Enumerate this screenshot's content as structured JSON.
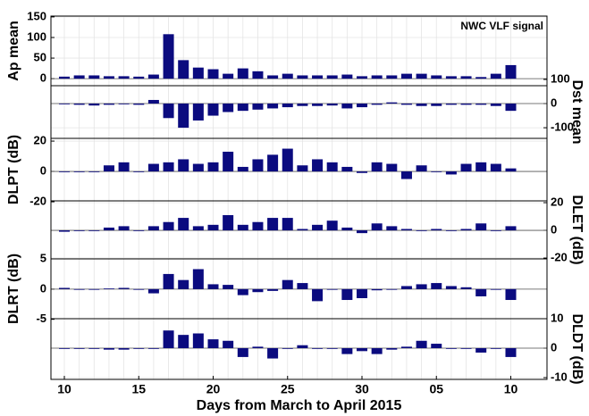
{
  "chart_data": [
    {
      "type": "bar",
      "ylabel": "Ap mean",
      "axis_side": "left",
      "annotation": "NWC VLF signal",
      "color": "#0b0b7f",
      "grid": true,
      "ylim": [
        -17,
        152
      ],
      "yticks": [
        0,
        50,
        100,
        150
      ],
      "values": [
        5,
        8,
        8,
        6,
        6,
        5,
        10,
        108,
        45,
        27,
        23,
        12,
        25,
        18,
        8,
        12,
        8,
        8,
        8,
        10,
        6,
        8,
        8,
        12,
        12,
        8,
        6,
        6,
        4,
        12,
        33
      ]
    },
    {
      "type": "bar",
      "ylabel": "Dst mean",
      "axis_side": "right",
      "color": "#0b0b7f",
      "grid": true,
      "ylim": [
        -144,
        74
      ],
      "yticks": [
        -100,
        0,
        100
      ],
      "values": [
        -2,
        -5,
        -8,
        -5,
        -3,
        -5,
        15,
        -60,
        -100,
        -70,
        -50,
        -35,
        -30,
        -25,
        -20,
        -15,
        -10,
        -10,
        -8,
        -20,
        -15,
        -5,
        5,
        -5,
        -10,
        -10,
        -5,
        -5,
        -5,
        -10,
        -30
      ]
    },
    {
      "type": "bar",
      "ylabel": "DLPT (dB)",
      "axis_side": "left",
      "color": "#0b0b7f",
      "grid": true,
      "ylim": [
        -19.4,
        21.8
      ],
      "yticks": [
        -20,
        0,
        20
      ],
      "values": [
        0,
        0,
        0,
        4,
        6,
        0,
        5,
        6,
        8,
        5,
        6,
        13,
        3,
        8,
        11,
        15,
        4,
        8,
        6,
        3,
        -1,
        6,
        5,
        -5,
        4,
        0,
        -2,
        5,
        6,
        5,
        2
      ]
    },
    {
      "type": "bar",
      "ylabel": "DLET (dB)",
      "axis_side": "right",
      "color": "#0b0b7f",
      "grid": true,
      "ylim": [
        -20.6,
        21.3
      ],
      "yticks": [
        -20,
        0,
        20
      ],
      "values": [
        -1,
        0,
        0,
        2,
        3,
        0,
        3,
        6,
        9,
        3,
        4,
        11,
        4,
        6,
        9,
        9,
        1,
        4,
        7,
        2,
        -2,
        5,
        3,
        1,
        0,
        1,
        0,
        1,
        5,
        0,
        3
      ]
    },
    {
      "type": "bar",
      "ylabel": "DLRT (dB)",
      "axis_side": "left",
      "color": "#0b0b7f",
      "grid": true,
      "ylim": [
        -4.9,
        5
      ],
      "yticks": [
        -5,
        0,
        5
      ],
      "values": [
        0.2,
        0,
        0,
        0.1,
        0.2,
        0,
        -0.7,
        2.5,
        1.5,
        3.3,
        0.8,
        0.7,
        -1,
        -0.5,
        -0.3,
        1.5,
        1,
        -2,
        0,
        -1.8,
        -1.5,
        -0.2,
        0,
        0.5,
        0.8,
        1,
        0.5,
        0.3,
        -1.2,
        0,
        -1.8
      ]
    },
    {
      "type": "bar",
      "ylabel": "DLDT (dB)",
      "axis_side": "right",
      "color": "#0b0b7f",
      "grid": true,
      "ylim": [
        -10.6,
        10
      ],
      "yticks": [
        -10,
        0,
        10
      ],
      "xlabel": "Days from March to April 2015",
      "categories": [
        "10",
        null,
        null,
        null,
        null,
        "15",
        null,
        null,
        null,
        null,
        "20",
        null,
        null,
        null,
        null,
        "25",
        null,
        null,
        null,
        null,
        "30",
        null,
        null,
        null,
        null,
        "05",
        null,
        null,
        null,
        null,
        "10"
      ],
      "values": [
        0,
        0,
        0,
        -0.5,
        -0.5,
        0,
        0,
        6,
        4.5,
        5,
        3,
        2.5,
        -3,
        0.5,
        -3.5,
        0,
        1,
        0,
        0,
        -2,
        -1,
        -2,
        -0.5,
        0.5,
        2.5,
        1.5,
        0,
        0,
        -1.5,
        0,
        -3
      ]
    }
  ]
}
